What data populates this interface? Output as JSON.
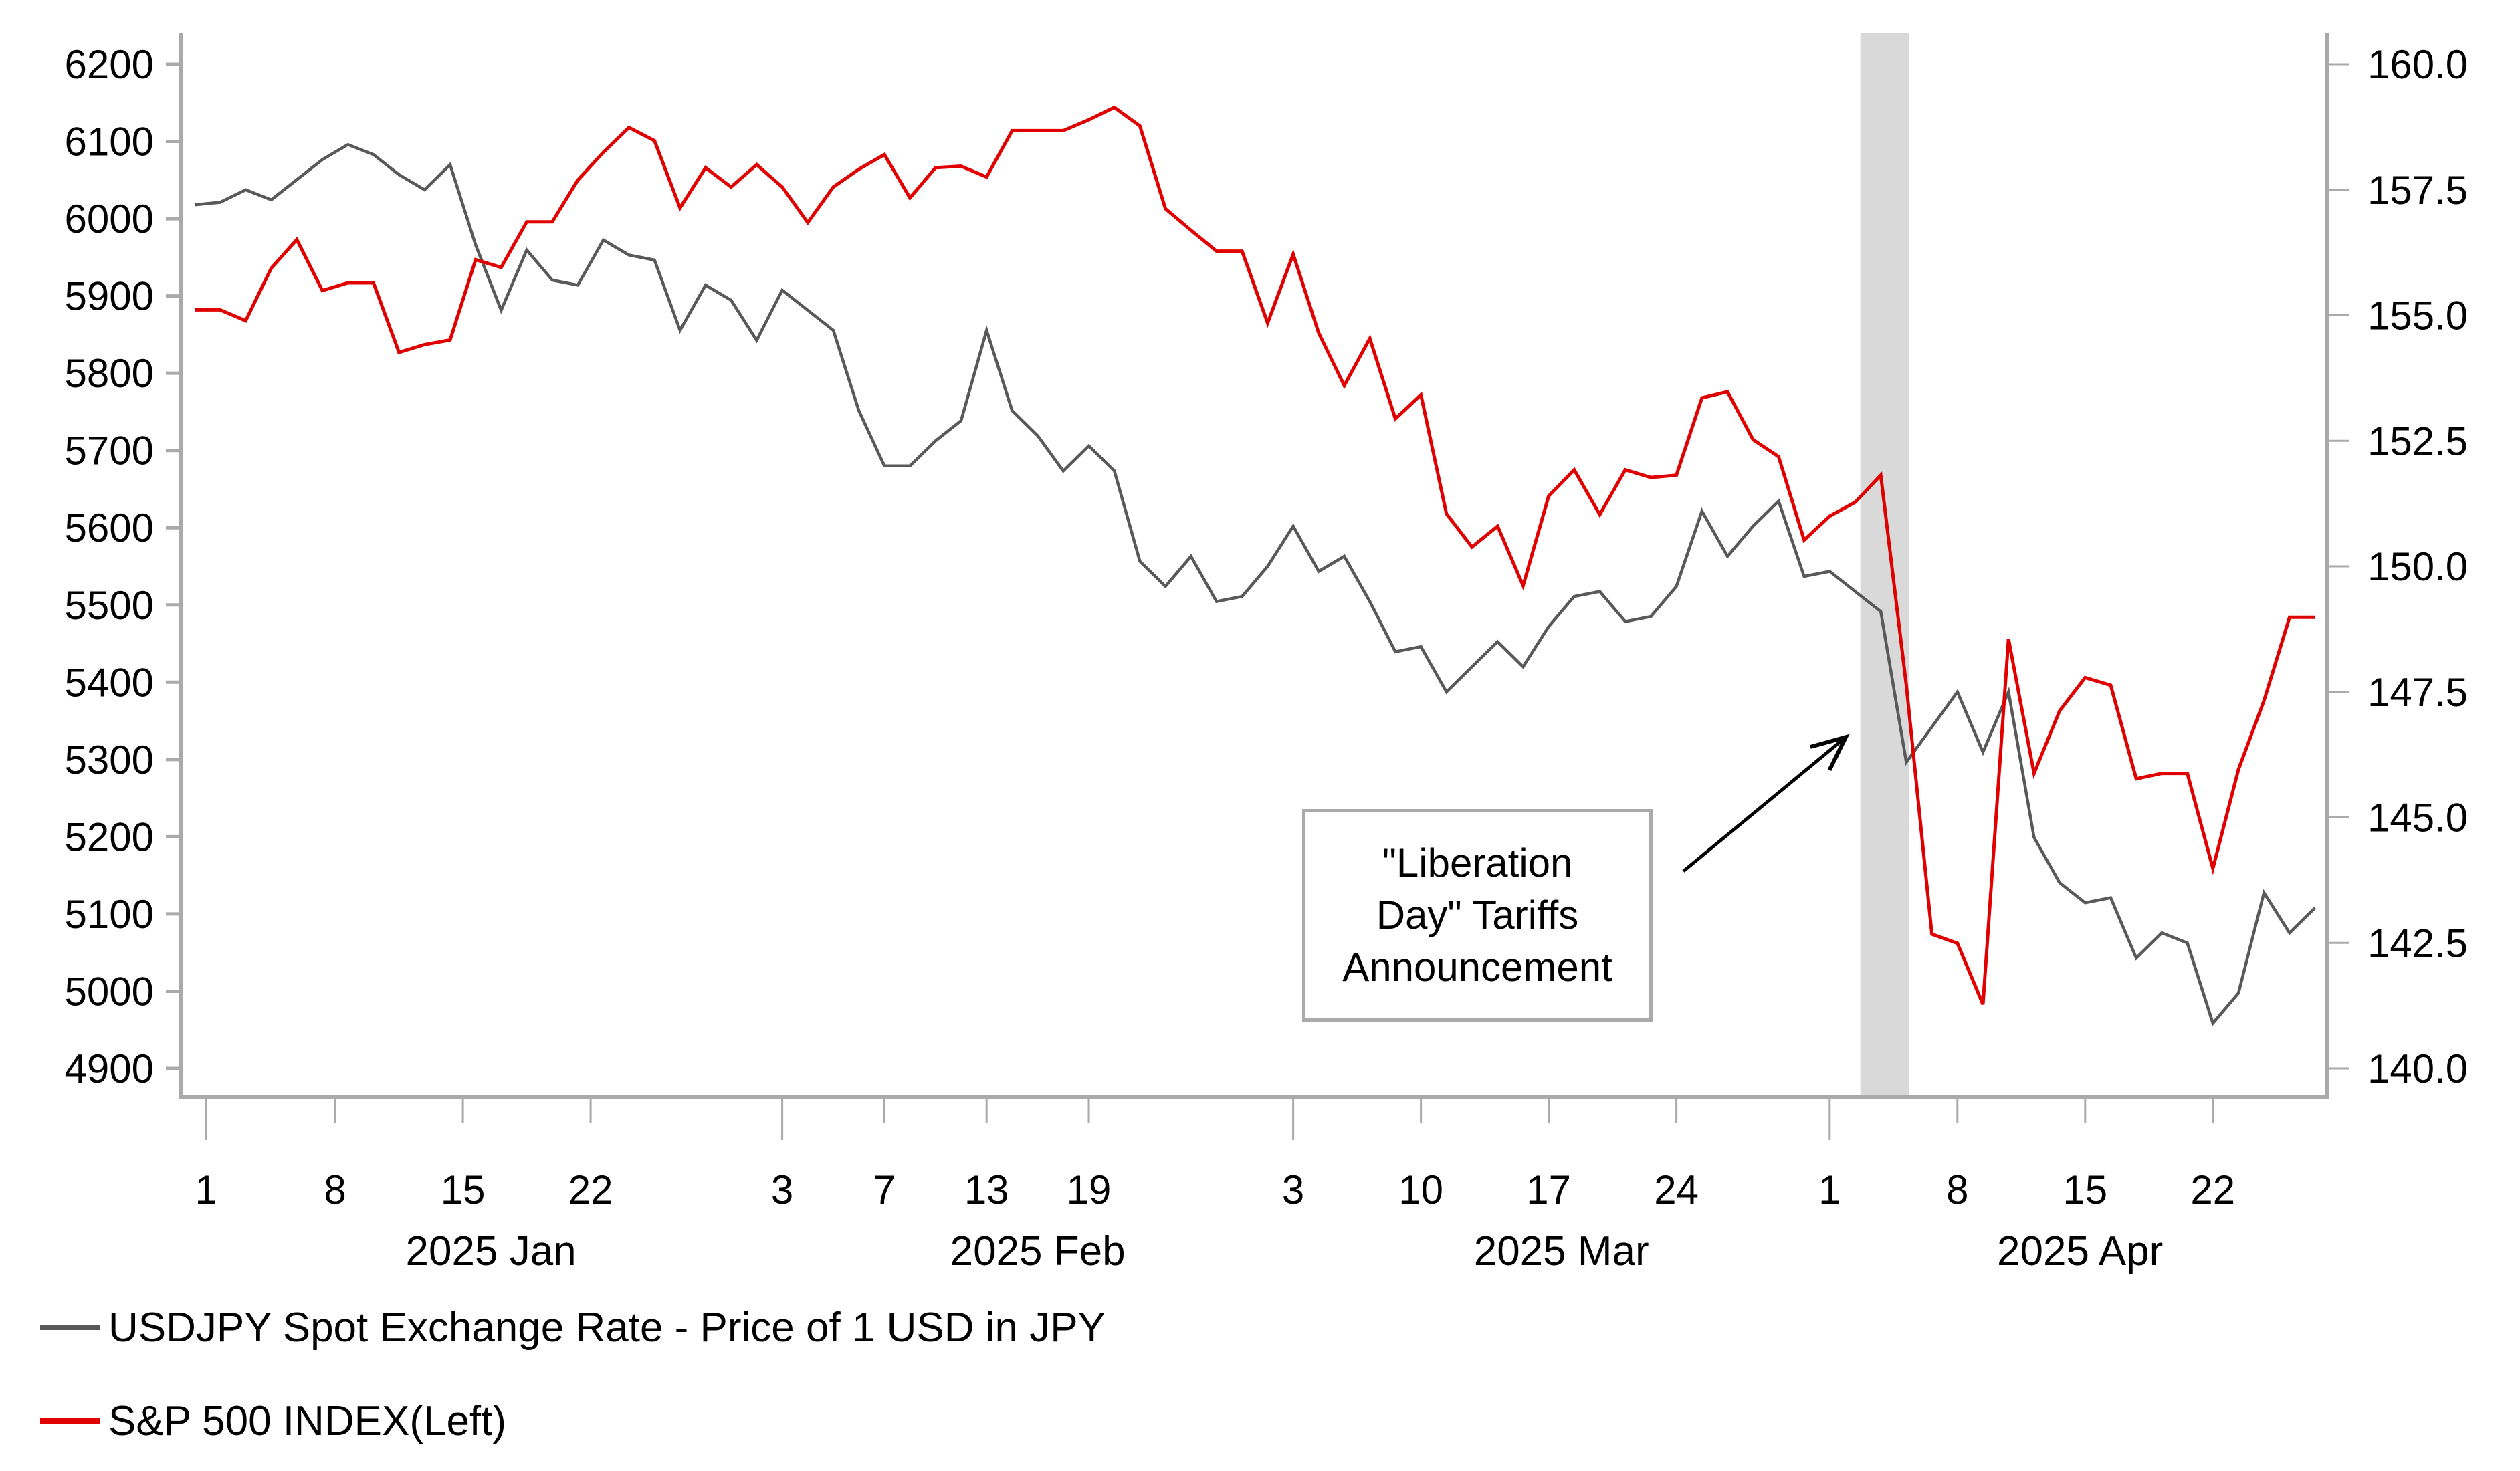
{
  "chart_data": {
    "type": "line",
    "title": "",
    "xlabel": "",
    "ylabel_left": "",
    "ylabel_right": "",
    "left_axis": {
      "ylim": [
        4900,
        6200
      ],
      "ticks": [
        "4900",
        "5000",
        "5100",
        "5200",
        "5300",
        "5400",
        "5500",
        "5600",
        "5700",
        "5800",
        "5900",
        "6000",
        "6100",
        "6200"
      ],
      "tick_values": [
        4900,
        5000,
        5100,
        5200,
        5300,
        5400,
        5500,
        5600,
        5700,
        5800,
        5900,
        6000,
        6100,
        6200
      ]
    },
    "right_axis": {
      "ylim": [
        140.0,
        160.0
      ],
      "ticks": [
        "140.0",
        "142.5",
        "145.0",
        "147.5",
        "150.0",
        "152.5",
        "155.0",
        "157.5",
        "160.0"
      ],
      "tick_values": [
        140.0,
        142.5,
        145.0,
        147.5,
        150.0,
        152.5,
        155.0,
        157.5,
        160.0
      ]
    },
    "x_ticks": [
      {
        "label": "1",
        "index": 0.45,
        "major": true
      },
      {
        "label": "8",
        "index": 5.5,
        "major": false
      },
      {
        "label": "15",
        "index": 10.5,
        "major": false
      },
      {
        "label": "22",
        "index": 15.5,
        "major": false
      },
      {
        "label": "3",
        "index": 23.0,
        "major": true
      },
      {
        "label": "7",
        "index": 27.0,
        "major": false
      },
      {
        "label": "13",
        "index": 31.0,
        "major": false
      },
      {
        "label": "19",
        "index": 35.0,
        "major": false
      },
      {
        "label": "3",
        "index": 43.0,
        "major": true
      },
      {
        "label": "10",
        "index": 48.0,
        "major": false
      },
      {
        "label": "17",
        "index": 53.0,
        "major": false
      },
      {
        "label": "24",
        "index": 58.0,
        "major": false
      },
      {
        "label": "1",
        "index": 64.0,
        "major": true
      },
      {
        "label": "8",
        "index": 69.0,
        "major": false
      },
      {
        "label": "15",
        "index": 74.0,
        "major": false
      },
      {
        "label": "22",
        "index": 79.0,
        "major": false
      }
    ],
    "month_labels": [
      {
        "label": "2025 Jan",
        "index": 11.6
      },
      {
        "label": "2025 Feb",
        "index": 33.0
      },
      {
        "label": "2025 Mar",
        "index": 53.5
      },
      {
        "label": "2025 Apr",
        "index": 73.8
      }
    ],
    "n_points": 84,
    "shaded_region": {
      "from_index": 65.2,
      "to_index": 67.1,
      "color": "#d9d9d9"
    },
    "annotation": {
      "lines": [
        "\"Liberation",
        "Day\" Tariffs",
        "Announcement"
      ],
      "arrow_to_index": 65.0,
      "arrow_to_right_value": 146.6
    },
    "series": [
      {
        "name": "USDJPY Spot Exchange Rate - Price of 1 USD in JPY",
        "axis": "right",
        "color": "#595959",
        "values": [
          157.2,
          157.25,
          157.5,
          157.3,
          157.7,
          158.1,
          158.4,
          158.2,
          157.8,
          157.5,
          158.0,
          156.4,
          155.1,
          156.3,
          155.7,
          155.6,
          156.5,
          156.2,
          156.1,
          154.7,
          155.6,
          155.3,
          154.5,
          155.5,
          155.1,
          154.7,
          153.1,
          152.0,
          152.0,
          152.5,
          152.9,
          154.7,
          153.1,
          152.6,
          151.9,
          152.4,
          151.9,
          150.1,
          149.6,
          150.2,
          149.3,
          149.4,
          150.0,
          150.8,
          149.9,
          150.2,
          149.3,
          148.3,
          148.4,
          147.5,
          148.0,
          148.5,
          148.0,
          148.8,
          149.4,
          149.5,
          148.9,
          149.0,
          149.6,
          151.1,
          150.2,
          150.8,
          151.3,
          149.8,
          149.9,
          149.5,
          149.1,
          146.1,
          146.8,
          147.5,
          146.3,
          147.5,
          144.6,
          143.7,
          143.3,
          143.4,
          142.2,
          142.7,
          142.5,
          140.9,
          141.5,
          143.5,
          142.7,
          143.2
        ],
        "legend_label": "USDJPY Spot Exchange Rate - Price of 1 USD in JPY"
      },
      {
        "name": "S&P 500 INDEX(Left)",
        "axis": "left",
        "color": "#e00000",
        "values": [
          5882,
          5882,
          5868,
          5936,
          5973,
          5907,
          5917,
          5917,
          5827,
          5837,
          5843,
          5947,
          5937,
          5996,
          5996,
          6050,
          6086,
          6118,
          6101,
          6014,
          6066,
          6041,
          6070,
          6041,
          5995,
          6041,
          6064,
          6083,
          6027,
          6066,
          6068,
          6054,
          6114,
          6114,
          6114,
          6128,
          6144,
          6120,
          6013,
          5985,
          5958,
          5958,
          5865,
          5954,
          5852,
          5784,
          5845,
          5741,
          5772,
          5618,
          5575,
          5602,
          5525,
          5641,
          5675,
          5617,
          5675,
          5665,
          5668,
          5768,
          5776,
          5714,
          5692,
          5584,
          5615,
          5633,
          5668,
          5396,
          5074,
          5062,
          4983,
          5456,
          5282,
          5363,
          5406,
          5396,
          5275,
          5282,
          5282,
          5159,
          5287,
          5376,
          5484,
          5484
        ]
      }
    ]
  },
  "legend": {
    "items": [
      {
        "label": "USDJPY Spot Exchange Rate - Price of 1 USD in JPY",
        "color": "#595959"
      },
      {
        "label": "S&P 500 INDEX(Left)",
        "color": "#e00000"
      }
    ]
  },
  "colors": {
    "axis": "#aaaaaa",
    "shade": "#d9d9d9",
    "usdjpy": "#595959",
    "spx": "#e00000"
  }
}
